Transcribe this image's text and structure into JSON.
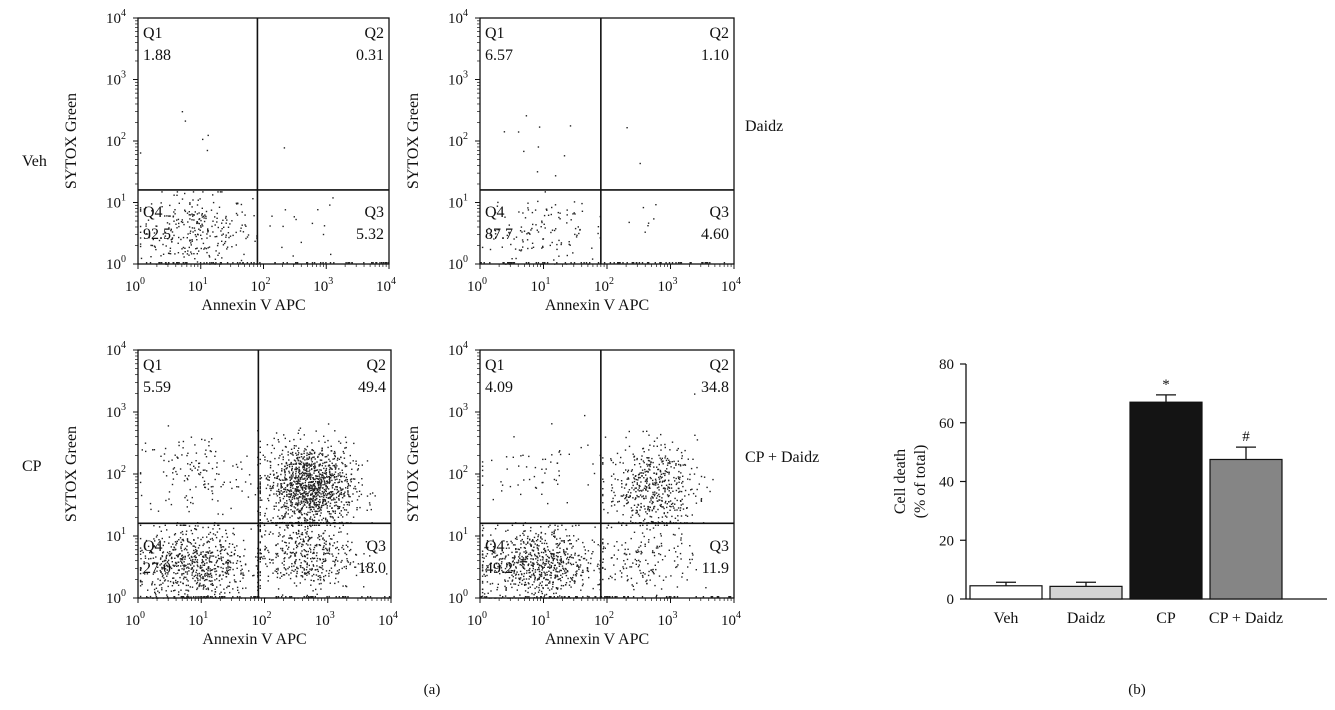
{
  "panel_labels": {
    "a": "(a)",
    "b": "(b)"
  },
  "row_labels": {
    "veh": "Veh",
    "cp": "CP"
  },
  "col_labels": {
    "daidz": "Daidz",
    "cp_daidz": "CP + Daidz"
  },
  "chart_data": [
    {
      "type": "scatter",
      "name": "Veh",
      "xlabel": "Annexin V APC",
      "ylabel": "SYTOX Green",
      "x_scale": "log",
      "y_scale": "log",
      "xlim": [
        1,
        10000
      ],
      "ylim": [
        1,
        10000
      ],
      "x_tick_base": "10",
      "x_tick_exponents": [
        "0",
        "1",
        "2",
        "3",
        "4"
      ],
      "y_tick_base": "10",
      "y_tick_exponents": [
        "0",
        "1",
        "2",
        "3",
        "4"
      ],
      "gate_x": 80,
      "gate_y": 16,
      "quadrants": [
        {
          "name": "Q1",
          "value": "1.88"
        },
        {
          "name": "Q2",
          "value": "0.31"
        },
        {
          "name": "Q3",
          "value": "5.32"
        },
        {
          "name": "Q4",
          "value": "92.5"
        }
      ]
    },
    {
      "type": "scatter",
      "name": "Daidz",
      "xlabel": "Annexin V APC",
      "ylabel": "SYTOX Green",
      "x_scale": "log",
      "y_scale": "log",
      "xlim": [
        1,
        10000
      ],
      "ylim": [
        1,
        10000
      ],
      "x_tick_base": "10",
      "x_tick_exponents": [
        "0",
        "1",
        "2",
        "3",
        "4"
      ],
      "y_tick_base": "10",
      "y_tick_exponents": [
        "0",
        "1",
        "2",
        "3",
        "4"
      ],
      "gate_x": 80,
      "gate_y": 16,
      "quadrants": [
        {
          "name": "Q1",
          "value": "6.57"
        },
        {
          "name": "Q2",
          "value": "1.10"
        },
        {
          "name": "Q3",
          "value": "4.60"
        },
        {
          "name": "Q4",
          "value": "87.7"
        }
      ]
    },
    {
      "type": "scatter",
      "name": "CP",
      "xlabel": "Annexin V APC",
      "ylabel": "SYTOX Green",
      "x_scale": "log",
      "y_scale": "log",
      "xlim": [
        1,
        10000
      ],
      "ylim": [
        1,
        10000
      ],
      "x_tick_base": "10",
      "x_tick_exponents": [
        "0",
        "1",
        "2",
        "3",
        "4"
      ],
      "y_tick_base": "10",
      "y_tick_exponents": [
        "0",
        "1",
        "2",
        "3",
        "4"
      ],
      "gate_x": 80,
      "gate_y": 16,
      "quadrants": [
        {
          "name": "Q1",
          "value": "5.59"
        },
        {
          "name": "Q2",
          "value": "49.4"
        },
        {
          "name": "Q3",
          "value": "18.0"
        },
        {
          "name": "Q4",
          "value": "27.0"
        }
      ]
    },
    {
      "type": "scatter",
      "name": "CP + Daidz",
      "xlabel": "Annexin V APC",
      "ylabel": "SYTOX Green",
      "x_scale": "log",
      "y_scale": "log",
      "xlim": [
        1,
        10000
      ],
      "ylim": [
        1,
        10000
      ],
      "x_tick_base": "10",
      "x_tick_exponents": [
        "0",
        "1",
        "2",
        "3",
        "4"
      ],
      "y_tick_base": "10",
      "y_tick_exponents": [
        "0",
        "1",
        "2",
        "3",
        "4"
      ],
      "gate_x": 80,
      "gate_y": 16,
      "quadrants": [
        {
          "name": "Q1",
          "value": "4.09"
        },
        {
          "name": "Q2",
          "value": "34.8"
        },
        {
          "name": "Q3",
          "value": "11.9"
        },
        {
          "name": "Q4",
          "value": "49.2"
        }
      ]
    },
    {
      "type": "bar",
      "categories": [
        "Veh",
        "Daidz",
        "CP",
        "CP + Daidz"
      ],
      "values": [
        4.5,
        4.3,
        67,
        47.5
      ],
      "errors": [
        1.2,
        1.4,
        2.5,
        4.2
      ],
      "bar_colors": [
        "#ffffff",
        "#d4d4d4",
        "#141414",
        "#858585"
      ],
      "annotations": [
        "",
        "",
        "*",
        "#"
      ],
      "ylabel_lines": [
        "Cell death",
        "(% of total)"
      ],
      "xlabel": "",
      "ylim": [
        0,
        80
      ],
      "yticks": [
        "0",
        "20",
        "40",
        "60",
        "80"
      ]
    }
  ]
}
